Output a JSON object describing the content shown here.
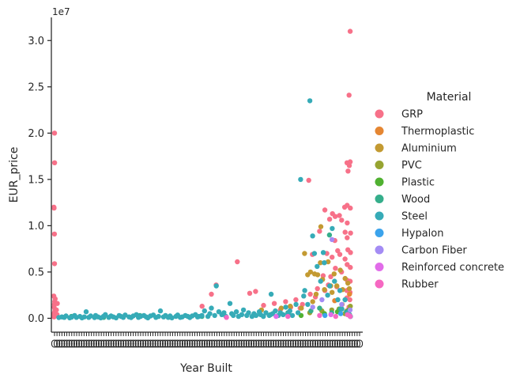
{
  "chart_data": {
    "type": "scatter",
    "title": "",
    "xlabel": "Year Built",
    "ylabel": "EUR_price",
    "y_offset_label": "1e7",
    "y_scale_factor": 10000000,
    "ylim": [
      -1500000,
      32500000
    ],
    "yticks": [
      0,
      5000000,
      10000000,
      15000000,
      20000000,
      25000000,
      30000000
    ],
    "ytick_labels": [
      "0.0",
      "0.5",
      "1.0",
      "1.5",
      "2.0",
      "2.5",
      "3.0"
    ],
    "x_axis_kind": "categorical strip (one column per year, tick labels overlap and are illegible)",
    "x_categories_count": 125,
    "grid": false,
    "legend": {
      "title": "Material",
      "placement": "right",
      "entries": [
        "GRP",
        "Thermoplastic",
        "Aluminium",
        "PVC",
        "Plastic",
        "Wood",
        "Steel",
        "Hypalon",
        "Carbon Fiber",
        "Reinforced concrete",
        "Rubber"
      ]
    },
    "colors": {
      "GRP": "#f77189",
      "Thermoplastic": "#e58632",
      "Aluminium": "#c39a32",
      "PVC": "#97a431",
      "Plastic": "#50b131",
      "Wood": "#35ae8b",
      "Steel": "#36abb7",
      "Hypalon": "#3ba3ec",
      "Carbon Fiber": "#a48cf4",
      "Reinforced concrete": "#e16ce9",
      "Rubber": "#f668c2"
    },
    "series": [
      {
        "name": "GRP",
        "points": [
          [
            0,
            20000000
          ],
          [
            0,
            16800000
          ],
          [
            0,
            12000000
          ],
          [
            0,
            11900000
          ],
          [
            0,
            9100000
          ],
          [
            0,
            5900000
          ],
          [
            0,
            2400000
          ],
          [
            0,
            2100000
          ],
          [
            0,
            1800000
          ],
          [
            0,
            1500000
          ],
          [
            0,
            1200000
          ],
          [
            0,
            900000
          ],
          [
            0,
            700000
          ],
          [
            0,
            500000
          ],
          [
            0,
            300000
          ],
          [
            0,
            150000
          ],
          [
            1,
            1600000
          ],
          [
            1,
            900000
          ],
          [
            1,
            400000
          ],
          [
            60,
            1300000
          ],
          [
            64,
            2600000
          ],
          [
            66,
            3600000
          ],
          [
            74,
            6100000
          ],
          [
            79,
            2700000
          ],
          [
            82,
            2900000
          ],
          [
            85,
            1400000
          ],
          [
            89,
            1600000
          ],
          [
            92,
            900000
          ],
          [
            94,
            1800000
          ],
          [
            96,
            1200000
          ],
          [
            98,
            2000000
          ],
          [
            100,
            1100000
          ],
          [
            101,
            1500000
          ],
          [
            103,
            14900000
          ],
          [
            104,
            2600000
          ],
          [
            105,
            6900000
          ],
          [
            106,
            2300000
          ],
          [
            107,
            3200000
          ],
          [
            108,
            9400000
          ],
          [
            109,
            4600000
          ],
          [
            110,
            11700000
          ],
          [
            110,
            3000000
          ],
          [
            111,
            7000000
          ],
          [
            111,
            3600000
          ],
          [
            112,
            10700000
          ],
          [
            112,
            4500000
          ],
          [
            113,
            11300000
          ],
          [
            113,
            6600000
          ],
          [
            114,
            11000000
          ],
          [
            114,
            8400000
          ],
          [
            114,
            5400000
          ],
          [
            115,
            7300000
          ],
          [
            115,
            3400000
          ],
          [
            116,
            11100000
          ],
          [
            116,
            6900000
          ],
          [
            117,
            10600000
          ],
          [
            117,
            5000000
          ],
          [
            118,
            12000000
          ],
          [
            118,
            9300000
          ],
          [
            118,
            6400000
          ],
          [
            119,
            15900000
          ],
          [
            119,
            16800000
          ],
          [
            119,
            12200000
          ],
          [
            119,
            10300000
          ],
          [
            119,
            8700000
          ],
          [
            119,
            7400000
          ],
          [
            119,
            5800000
          ],
          [
            119,
            4100000
          ],
          [
            119,
            3000000
          ],
          [
            119,
            2200000
          ],
          [
            120,
            31000000
          ],
          [
            120,
            24100000
          ],
          [
            120,
            16500000
          ],
          [
            120,
            16900000
          ],
          [
            120,
            11900000
          ],
          [
            120,
            9200000
          ],
          [
            120,
            7100000
          ],
          [
            120,
            5500000
          ],
          [
            120,
            4000000
          ],
          [
            120,
            2800000
          ],
          [
            120,
            2000000
          ],
          [
            120,
            1200000
          ]
        ]
      },
      {
        "name": "Thermoplastic",
        "points": [
          [
            114,
            1900000
          ],
          [
            117,
            1500000
          ],
          [
            119,
            800000
          ],
          [
            120,
            2600000
          ]
        ]
      },
      {
        "name": "Aluminium",
        "points": [
          [
            84,
            900000
          ],
          [
            92,
            1100000
          ],
          [
            96,
            1300000
          ],
          [
            100,
            1100000
          ],
          [
            102,
            7000000
          ],
          [
            103,
            4700000
          ],
          [
            104,
            5000000
          ],
          [
            105,
            1800000
          ],
          [
            106,
            4800000
          ],
          [
            106,
            2600000
          ],
          [
            107,
            4700000
          ],
          [
            108,
            9900000
          ],
          [
            108,
            6000000
          ],
          [
            109,
            4200000
          ],
          [
            110,
            3100000
          ],
          [
            111,
            6100000
          ],
          [
            112,
            3500000
          ],
          [
            113,
            2800000
          ],
          [
            114,
            4800000
          ],
          [
            115,
            3500000
          ],
          [
            116,
            5200000
          ],
          [
            117,
            3100000
          ],
          [
            118,
            4300000
          ],
          [
            119,
            3800000
          ],
          [
            120,
            3200000
          ]
        ]
      },
      {
        "name": "PVC",
        "points": [
          [
            95,
            400000
          ],
          [
            104,
            600000
          ],
          [
            109,
            800000
          ],
          [
            113,
            900000
          ],
          [
            116,
            1000000
          ],
          [
            118,
            500000
          ],
          [
            120,
            1300000
          ]
        ]
      },
      {
        "name": "Plastic",
        "points": [
          [
            100,
            300000
          ],
          [
            110,
            500000
          ],
          [
            115,
            700000
          ],
          [
            120,
            900000
          ]
        ]
      },
      {
        "name": "Wood",
        "points": [
          [
            7,
            200000
          ],
          [
            20,
            100000
          ],
          [
            35,
            300000
          ],
          [
            60,
            200000
          ],
          [
            88,
            400000
          ],
          [
            95,
            600000
          ],
          [
            104,
            800000
          ],
          [
            108,
            1100000
          ],
          [
            112,
            9000000
          ],
          [
            113,
            600000
          ],
          [
            116,
            1000000
          ],
          [
            119,
            700000
          ],
          [
            120,
            400000
          ]
        ]
      },
      {
        "name": "Steel",
        "points": [
          [
            2,
            80000
          ],
          [
            3,
            150000
          ],
          [
            4,
            100000
          ],
          [
            5,
            250000
          ],
          [
            6,
            50000
          ],
          [
            7,
            120000
          ],
          [
            8,
            300000
          ],
          [
            9,
            100000
          ],
          [
            10,
            200000
          ],
          [
            11,
            50000
          ],
          [
            12,
            150000
          ],
          [
            13,
            700000
          ],
          [
            14,
            100000
          ],
          [
            15,
            250000
          ],
          [
            16,
            80000
          ],
          [
            17,
            300000
          ],
          [
            18,
            150000
          ],
          [
            19,
            50000
          ],
          [
            20,
            200000
          ],
          [
            21,
            400000
          ],
          [
            22,
            100000
          ],
          [
            23,
            250000
          ],
          [
            24,
            150000
          ],
          [
            25,
            50000
          ],
          [
            26,
            300000
          ],
          [
            27,
            200000
          ],
          [
            28,
            100000
          ],
          [
            29,
            350000
          ],
          [
            30,
            150000
          ],
          [
            31,
            80000
          ],
          [
            32,
            250000
          ],
          [
            33,
            400000
          ],
          [
            34,
            100000
          ],
          [
            35,
            200000
          ],
          [
            36,
            300000
          ],
          [
            37,
            150000
          ],
          [
            38,
            50000
          ],
          [
            39,
            250000
          ],
          [
            40,
            350000
          ],
          [
            41,
            100000
          ],
          [
            42,
            200000
          ],
          [
            43,
            800000
          ],
          [
            44,
            150000
          ],
          [
            45,
            300000
          ],
          [
            46,
            100000
          ],
          [
            47,
            250000
          ],
          [
            48,
            50000
          ],
          [
            49,
            200000
          ],
          [
            50,
            350000
          ],
          [
            51,
            100000
          ],
          [
            52,
            150000
          ],
          [
            53,
            300000
          ],
          [
            54,
            200000
          ],
          [
            55,
            80000
          ],
          [
            56,
            250000
          ],
          [
            57,
            400000
          ],
          [
            58,
            150000
          ],
          [
            59,
            200000
          ],
          [
            60,
            300000
          ],
          [
            61,
            800000
          ],
          [
            62,
            200000
          ],
          [
            63,
            500000
          ],
          [
            64,
            1100000
          ],
          [
            65,
            300000
          ],
          [
            66,
            3500000
          ],
          [
            67,
            700000
          ],
          [
            68,
            400000
          ],
          [
            69,
            600000
          ],
          [
            70,
            200000
          ],
          [
            71,
            1600000
          ],
          [
            72,
            500000
          ],
          [
            73,
            300000
          ],
          [
            74,
            700000
          ],
          [
            75,
            200000
          ],
          [
            76,
            400000
          ],
          [
            77,
            900000
          ],
          [
            78,
            300000
          ],
          [
            79,
            600000
          ],
          [
            80,
            200000
          ],
          [
            81,
            500000
          ],
          [
            82,
            300000
          ],
          [
            83,
            700000
          ],
          [
            84,
            400000
          ],
          [
            85,
            200000
          ],
          [
            86,
            600000
          ],
          [
            87,
            300000
          ],
          [
            88,
            2600000
          ],
          [
            89,
            500000
          ],
          [
            90,
            800000
          ],
          [
            91,
            300000
          ],
          [
            92,
            600000
          ],
          [
            93,
            400000
          ],
          [
            94,
            1200000
          ],
          [
            95,
            500000
          ],
          [
            96,
            800000
          ],
          [
            97,
            300000
          ],
          [
            98,
            1500000
          ],
          [
            99,
            600000
          ],
          [
            100,
            15000000
          ],
          [
            101,
            2400000
          ],
          [
            102,
            3000000
          ],
          [
            103,
            1500000
          ],
          [
            104,
            23500000
          ],
          [
            105,
            8900000
          ],
          [
            106,
            7000000
          ],
          [
            107,
            5600000
          ],
          [
            108,
            4000000
          ],
          [
            109,
            7100000
          ],
          [
            110,
            6000000
          ],
          [
            111,
            2500000
          ],
          [
            112,
            3500000
          ],
          [
            113,
            9700000
          ],
          [
            114,
            4000000
          ],
          [
            115,
            2000000
          ],
          [
            116,
            3000000
          ],
          [
            117,
            1000000
          ],
          [
            118,
            2000000
          ],
          [
            119,
            600000
          ],
          [
            120,
            200000
          ]
        ]
      },
      {
        "name": "Hypalon",
        "points": [
          [
            110,
            300000
          ],
          [
            116,
            500000
          ],
          [
            120,
            200000
          ]
        ]
      },
      {
        "name": "Carbon Fiber",
        "points": [
          [
            105,
            1200000
          ],
          [
            109,
            2000000
          ],
          [
            113,
            8500000
          ],
          [
            117,
            1500000
          ],
          [
            120,
            900000
          ]
        ]
      },
      {
        "name": "Reinforced concrete",
        "points": [
          [
            90,
            200000
          ],
          [
            112,
            400000
          ],
          [
            120,
            300000
          ]
        ]
      },
      {
        "name": "Rubber",
        "points": [
          [
            70,
            100000
          ],
          [
            95,
            200000
          ],
          [
            108,
            300000
          ],
          [
            114,
            200000
          ],
          [
            119,
            400000
          ],
          [
            120,
            200000
          ]
        ]
      }
    ]
  }
}
